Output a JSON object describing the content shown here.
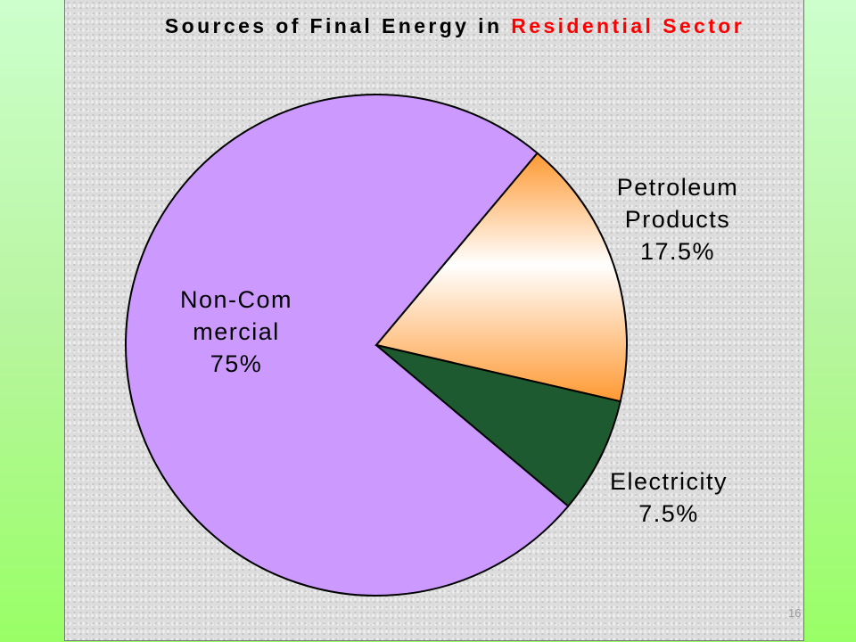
{
  "chart_data": {
    "type": "pie",
    "title": "Sources of Final Energy in",
    "title_highlight": "Residential Sector",
    "categories": [
      "Non-Commercial",
      "Petroleum Products",
      "Electricity"
    ],
    "values": [
      75,
      17.5,
      7.5
    ],
    "value_labels": [
      "75%",
      "17.5%",
      "7.5%"
    ],
    "colors": [
      "#cc99ff",
      "#ff9933",
      "#1e5a30"
    ]
  },
  "slide_number": "16"
}
